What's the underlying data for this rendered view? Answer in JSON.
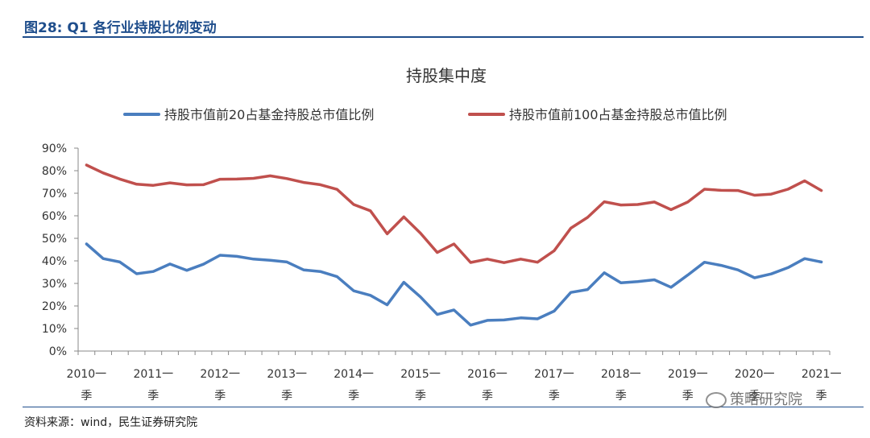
{
  "figure": {
    "title": "图28: Q1 各行业持股比例变动",
    "source": "资料来源：wind，民生证券研究院",
    "watermark": "策略研究院"
  },
  "chart_data": {
    "type": "line",
    "title": "持股集中度",
    "xlabel": "",
    "ylabel": "",
    "ylim": [
      0,
      90
    ],
    "y_ticks": [
      "0%",
      "10%",
      "20%",
      "30%",
      "40%",
      "50%",
      "60%",
      "70%",
      "80%",
      "90%"
    ],
    "x_tick_labels": [
      [
        "2010一",
        "季"
      ],
      [
        "2011一",
        "季"
      ],
      [
        "2012一",
        "季"
      ],
      [
        "2013一",
        "季"
      ],
      [
        "2014一",
        "季"
      ],
      [
        "2015一",
        "季"
      ],
      [
        "2016一",
        "季"
      ],
      [
        "2017一",
        "季"
      ],
      [
        "2018一",
        "季"
      ],
      [
        "2019一",
        "季"
      ],
      [
        "2020一",
        "季"
      ],
      [
        "2021一",
        "季"
      ]
    ],
    "legend_position": "top",
    "grid": false,
    "series": [
      {
        "name": "持股市值前20占基金持股总市值比例",
        "color": "#4a7ebf",
        "values": [
          47.5,
          41,
          39.5,
          34.3,
          35.3,
          38.6,
          35.8,
          38.5,
          42.5,
          42,
          40.8,
          40.3,
          39.5,
          36,
          35.3,
          33,
          26.7,
          24.7,
          20.5,
          30.5,
          24,
          16.2,
          18.2,
          11.5,
          13.6,
          13.8,
          14.7,
          14.3,
          17.7,
          26,
          27.3,
          34.7,
          30.3,
          30.8,
          31.6,
          28.3,
          33.7,
          39.4,
          38,
          36,
          32.5,
          34.2,
          37,
          41,
          39.5
        ]
      },
      {
        "name": "持股市值前100占基金持股总市值比例",
        "color": "#c0504d",
        "values": [
          82.5,
          79,
          76.3,
          74,
          73.5,
          74.6,
          73.7,
          73.8,
          76.2,
          76.3,
          76.6,
          77.7,
          76.5,
          74.8,
          73.8,
          71.7,
          65,
          62.2,
          52,
          59.5,
          52.3,
          43.7,
          47.5,
          39.3,
          40.8,
          39.2,
          40.8,
          39.4,
          44.5,
          54.5,
          59.3,
          66.2,
          64.8,
          65,
          66.1,
          62.7,
          66.1,
          71.8,
          71.3,
          71.2,
          69.1,
          69.6,
          71.8,
          75.5,
          71.2
        ]
      }
    ]
  }
}
